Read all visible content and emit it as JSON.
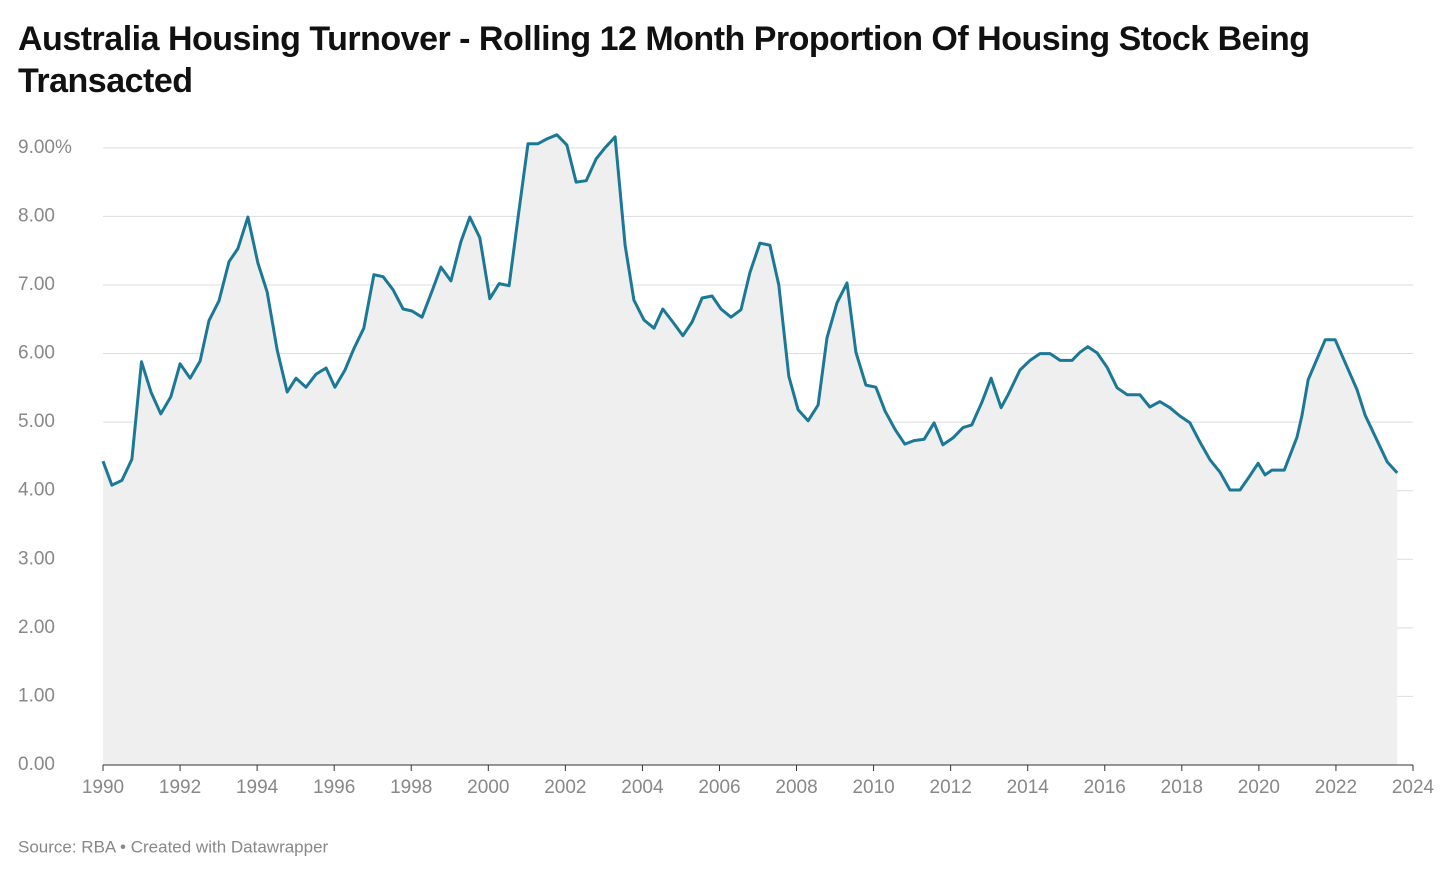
{
  "chart_data": {
    "type": "area",
    "title": "Australia Housing Turnover - Rolling 12 Month Proportion Of Housing Stock Being Transacted",
    "source": "Source: RBA • Created with Datawrapper",
    "x": [
      1990.0,
      1990.23,
      1990.49,
      1990.75,
      1991.0,
      1991.25,
      1991.5,
      1991.76,
      1992.0,
      1992.26,
      1992.52,
      1992.75,
      1993.01,
      1993.27,
      1993.5,
      1993.76,
      1994.02,
      1994.26,
      1994.52,
      1994.78,
      1995.01,
      1995.27,
      1995.53,
      1995.79,
      1996.02,
      1996.28,
      1996.51,
      1996.77,
      1997.03,
      1997.27,
      1997.53,
      1997.79,
      1998.02,
      1998.28,
      1998.54,
      1998.77,
      1999.03,
      1999.29,
      1999.52,
      1999.78,
      2000.04,
      2000.28,
      2000.54,
      2000.77,
      2001.03,
      2001.29,
      2001.52,
      2001.78,
      2002.04,
      2002.28,
      2002.54,
      2002.8,
      2003.03,
      2003.29,
      2003.55,
      2003.78,
      2004.04,
      2004.3,
      2004.53,
      2004.79,
      2005.05,
      2005.29,
      2005.55,
      2005.81,
      2006.04,
      2006.3,
      2006.56,
      2006.79,
      2007.05,
      2007.31,
      2007.54,
      2007.8,
      2008.04,
      2008.3,
      2008.56,
      2008.79,
      2009.05,
      2009.31,
      2009.54,
      2009.8,
      2010.06,
      2010.3,
      2010.56,
      2010.81,
      2011.05,
      2011.31,
      2011.57,
      2011.8,
      2012.06,
      2012.32,
      2012.55,
      2012.81,
      2013.05,
      2013.31,
      2013.49,
      2013.8,
      2014.06,
      2014.32,
      2014.58,
      2014.84,
      2015.15,
      2015.36,
      2015.56,
      2015.8,
      2016.06,
      2016.32,
      2016.58,
      2016.91,
      2017.17,
      2017.43,
      2017.69,
      2017.95,
      2018.21,
      2018.47,
      2018.73,
      2018.99,
      2019.25,
      2019.51,
      2019.77,
      2019.98,
      2020.16,
      2020.34,
      2020.66,
      2020.99,
      2021.12,
      2021.28,
      2021.72,
      2021.98,
      2022.55,
      2022.76,
      2023.33,
      2023.59
    ],
    "values": [
      4.43,
      4.08,
      4.15,
      4.46,
      5.88,
      5.43,
      5.12,
      5.37,
      5.85,
      5.64,
      5.89,
      6.48,
      6.77,
      7.34,
      7.53,
      7.99,
      7.32,
      6.9,
      6.05,
      5.44,
      5.64,
      5.51,
      5.7,
      5.79,
      5.51,
      5.76,
      6.07,
      6.37,
      7.15,
      7.12,
      6.93,
      6.65,
      6.62,
      6.53,
      6.91,
      7.26,
      7.06,
      7.63,
      7.99,
      7.69,
      6.8,
      7.02,
      6.99,
      7.98,
      9.06,
      9.06,
      9.13,
      9.19,
      9.04,
      8.5,
      8.52,
      8.84,
      9.0,
      9.16,
      7.58,
      6.78,
      6.49,
      6.37,
      6.65,
      6.46,
      6.26,
      6.46,
      6.81,
      6.84,
      6.65,
      6.53,
      6.64,
      7.18,
      7.61,
      7.58,
      7.0,
      5.67,
      5.18,
      5.02,
      5.25,
      6.23,
      6.74,
      7.03,
      6.02,
      5.54,
      5.51,
      5.16,
      4.89,
      4.68,
      4.73,
      4.75,
      4.99,
      4.67,
      4.77,
      4.92,
      4.96,
      5.29,
      5.64,
      5.21,
      5.4,
      5.76,
      5.9,
      6.0,
      6.0,
      5.9,
      5.9,
      6.02,
      6.1,
      6.01,
      5.8,
      5.5,
      5.4,
      5.4,
      5.22,
      5.3,
      5.21,
      5.09,
      4.99,
      4.71,
      4.45,
      4.27,
      4.01,
      4.01,
      4.22,
      4.4,
      4.23,
      4.3,
      4.3,
      4.78,
      5.1,
      5.62,
      6.2,
      6.2,
      5.47,
      5.1,
      4.42,
      4.26
    ],
    "color": "#1b7896",
    "fill_color": "#efefef",
    "xlim": [
      1990,
      2024
    ],
    "xticks": [
      1990,
      1992,
      1994,
      1996,
      1998,
      2000,
      2002,
      2004,
      2006,
      2008,
      2010,
      2012,
      2014,
      2016,
      2018,
      2020,
      2022,
      2024
    ],
    "ylim": [
      0,
      9.26
    ],
    "yticks": [
      {
        "value": 0,
        "label": "0.00"
      },
      {
        "value": 1,
        "label": "1.00"
      },
      {
        "value": 2,
        "label": "2.00"
      },
      {
        "value": 3,
        "label": "3.00"
      },
      {
        "value": 4,
        "label": "4.00"
      },
      {
        "value": 5,
        "label": "5.00"
      },
      {
        "value": 6,
        "label": "6.00"
      },
      {
        "value": 7,
        "label": "7.00"
      },
      {
        "value": 8,
        "label": "8.00"
      },
      {
        "value": 9,
        "label": "9.00%"
      }
    ],
    "grid": true
  }
}
